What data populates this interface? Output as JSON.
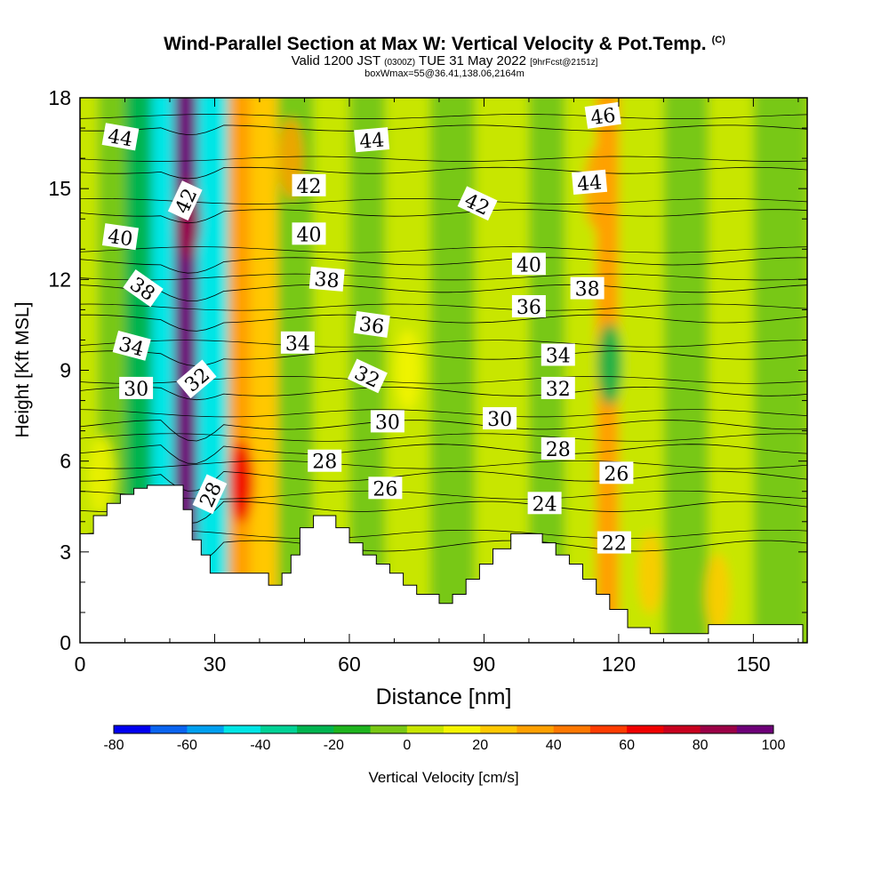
{
  "title": {
    "main": "Wind-Parallel Section at Max W: Vertical Velocity & Pot.Temp.",
    "copyright": "(C)",
    "valid_prefix": "Valid 1200 JST",
    "valid_z": "(0300Z)",
    "valid_date": "TUE 31 May 2022",
    "forecast": "[9hrFcst@2151z]",
    "box": "boxWmax=55@36.41,138.06,2164m"
  },
  "chart_data": {
    "type": "heatmap",
    "xlabel": "Distance [nm]",
    "ylabel": "Height [Kft MSL]",
    "xlim": [
      0,
      162
    ],
    "ylim": [
      0,
      18
    ],
    "x_ticks": [
      "0",
      "30",
      "60",
      "90",
      "120",
      "150"
    ],
    "y_ticks": [
      "0",
      "3",
      "6",
      "9",
      "12",
      "15",
      "18"
    ],
    "x_tick_values": [
      0,
      30,
      60,
      90,
      120,
      150
    ],
    "y_tick_values": [
      0,
      3,
      6,
      9,
      12,
      15,
      18
    ],
    "colorbar": {
      "label": "Vertical Velocity [cm/s]",
      "tick_labels": [
        "-80",
        "-60",
        "-40",
        "-20",
        "0",
        "20",
        "40",
        "60",
        "80",
        "100"
      ],
      "tick_values": [
        -80,
        -60,
        -40,
        -20,
        0,
        20,
        40,
        60,
        80,
        100
      ],
      "min": -80,
      "max": 100,
      "colors": [
        "#0000f0",
        "#0a64f0",
        "#00a0f0",
        "#00e6e6",
        "#00d296",
        "#00b450",
        "#1eb41e",
        "#78c814",
        "#c8e600",
        "#f5f500",
        "#ffc800",
        "#ffa000",
        "#ff7800",
        "#ff3c00",
        "#f00000",
        "#c8001e",
        "#9b0046",
        "#6e0078"
      ]
    },
    "terrain": [
      [
        0,
        3.6
      ],
      [
        3,
        3.6
      ],
      [
        3,
        4.2
      ],
      [
        6,
        4.2
      ],
      [
        6,
        4.6
      ],
      [
        9,
        4.6
      ],
      [
        9,
        4.9
      ],
      [
        12,
        4.9
      ],
      [
        12,
        5.1
      ],
      [
        15,
        5.1
      ],
      [
        15,
        5.2
      ],
      [
        23,
        5.2
      ],
      [
        23,
        4.4
      ],
      [
        25,
        4.4
      ],
      [
        25,
        3.4
      ],
      [
        27,
        3.4
      ],
      [
        27,
        2.9
      ],
      [
        29,
        2.9
      ],
      [
        29,
        2.3
      ],
      [
        42,
        2.3
      ],
      [
        42,
        1.9
      ],
      [
        45,
        1.9
      ],
      [
        45,
        2.3
      ],
      [
        47,
        2.3
      ],
      [
        47,
        2.9
      ],
      [
        49,
        2.9
      ],
      [
        49,
        3.8
      ],
      [
        52,
        3.8
      ],
      [
        52,
        4.2
      ],
      [
        57,
        4.2
      ],
      [
        57,
        3.8
      ],
      [
        60,
        3.8
      ],
      [
        60,
        3.3
      ],
      [
        63,
        3.3
      ],
      [
        63,
        2.9
      ],
      [
        66,
        2.9
      ],
      [
        66,
        2.6
      ],
      [
        69,
        2.6
      ],
      [
        69,
        2.3
      ],
      [
        72,
        2.3
      ],
      [
        72,
        1.9
      ],
      [
        75,
        1.9
      ],
      [
        75,
        1.6
      ],
      [
        80,
        1.6
      ],
      [
        80,
        1.3
      ],
      [
        83,
        1.3
      ],
      [
        83,
        1.6
      ],
      [
        86,
        1.6
      ],
      [
        86,
        2.1
      ],
      [
        89,
        2.1
      ],
      [
        89,
        2.6
      ],
      [
        92,
        2.6
      ],
      [
        92,
        3.1
      ],
      [
        96,
        3.1
      ],
      [
        96,
        3.6
      ],
      [
        103,
        3.6
      ],
      [
        103,
        3.3
      ],
      [
        106,
        3.3
      ],
      [
        106,
        2.9
      ],
      [
        109,
        2.9
      ],
      [
        109,
        2.6
      ],
      [
        112,
        2.6
      ],
      [
        112,
        2.1
      ],
      [
        115,
        2.1
      ],
      [
        115,
        1.6
      ],
      [
        118,
        1.6
      ],
      [
        118,
        1.1
      ],
      [
        122,
        1.1
      ],
      [
        122,
        0.5
      ],
      [
        127,
        0.5
      ],
      [
        127,
        0.3
      ],
      [
        140,
        0.3
      ],
      [
        140,
        0.6
      ],
      [
        161,
        0.6
      ],
      [
        161,
        0
      ]
    ],
    "wv_bands": [
      {
        "x": [
          0,
          4
        ],
        "w": 5
      },
      {
        "x": [
          4,
          10
        ],
        "w": -5
      },
      {
        "x": [
          10,
          16
        ],
        "w": -30
      },
      {
        "x": [
          16,
          21
        ],
        "w": -45
      },
      {
        "x": [
          21,
          26
        ],
        "w": 100
      },
      {
        "x": [
          26,
          33
        ],
        "w": -45
      },
      {
        "x": [
          33,
          38
        ],
        "w": 35
      },
      {
        "x": [
          38,
          44
        ],
        "w": 20
      },
      {
        "x": [
          44,
          52
        ],
        "w": -10
      },
      {
        "x": [
          52,
          60
        ],
        "w": 5
      },
      {
        "x": [
          60,
          68
        ],
        "w": -10
      },
      {
        "x": [
          68,
          78
        ],
        "w": 5
      },
      {
        "x": [
          78,
          88
        ],
        "w": -5
      },
      {
        "x": [
          88,
          100
        ],
        "w": 5
      },
      {
        "x": [
          100,
          108
        ],
        "w": -5
      },
      {
        "x": [
          108,
          115
        ],
        "w": 5
      },
      {
        "x": [
          115,
          120
        ],
        "w": 30
      },
      {
        "x": [
          120,
          130
        ],
        "w": 5
      },
      {
        "x": [
          130,
          140
        ],
        "w": -5
      },
      {
        "x": [
          140,
          150
        ],
        "w": 5
      },
      {
        "x": [
          150,
          162
        ],
        "w": -5
      }
    ],
    "wv_cells": [
      {
        "x": 36,
        "y": 5.3,
        "w": 60
      },
      {
        "x": 24,
        "y": 14,
        "w": 80
      },
      {
        "x": 73,
        "y": 9,
        "w": 15
      },
      {
        "x": 115,
        "y": 15,
        "w": 30
      },
      {
        "x": 47,
        "y": 16,
        "w": 35
      },
      {
        "x": 127,
        "y": 2.3,
        "w": 20
      },
      {
        "x": 142,
        "y": 1.6,
        "w": 20
      },
      {
        "x": 118,
        "y": 9.2,
        "w": -25
      },
      {
        "x": 5,
        "y": 5.5,
        "w": 15
      }
    ],
    "isentropes": [
      {
        "theta": 22,
        "y": 3.2
      },
      {
        "theta": 24,
        "y": 4.5
      },
      {
        "theta": 26,
        "y": 5.5
      },
      {
        "theta": 28,
        "y": 6.4
      },
      {
        "theta": 30,
        "y": 7.2
      },
      {
        "theta": 32,
        "y": 8.3
      },
      {
        "theta": 34,
        "y": 9.5
      },
      {
        "theta": 36,
        "y": 10.7
      },
      {
        "theta": 38,
        "y": 11.7
      },
      {
        "theta": 40,
        "y": 12.6
      },
      {
        "theta": 42,
        "y": 14.2
      },
      {
        "theta": 44,
        "y": 15.6
      },
      {
        "theta": 46,
        "y": 17.0
      }
    ],
    "contour_labels": [
      {
        "text": "44",
        "x": 9,
        "y": 16.7,
        "rot": 10
      },
      {
        "text": "42",
        "x": 23.5,
        "y": 14.6,
        "rot": -65
      },
      {
        "text": "40",
        "x": 9,
        "y": 13.4,
        "rot": 8
      },
      {
        "text": "38",
        "x": 14,
        "y": 11.7,
        "rot": 35
      },
      {
        "text": "34",
        "x": 11.5,
        "y": 9.8,
        "rot": 15
      },
      {
        "text": "32",
        "x": 26,
        "y": 8.7,
        "rot": -40
      },
      {
        "text": "30",
        "x": 12.5,
        "y": 8.4,
        "rot": 0
      },
      {
        "text": "28",
        "x": 29,
        "y": 4.9,
        "rot": -65
      },
      {
        "text": "42",
        "x": 51,
        "y": 15.1,
        "rot": 0
      },
      {
        "text": "40",
        "x": 51,
        "y": 13.5,
        "rot": 0
      },
      {
        "text": "38",
        "x": 55,
        "y": 12.0,
        "rot": 5
      },
      {
        "text": "34",
        "x": 48.5,
        "y": 9.9,
        "rot": 0
      },
      {
        "text": "36",
        "x": 65,
        "y": 10.5,
        "rot": 8
      },
      {
        "text": "32",
        "x": 64,
        "y": 8.8,
        "rot": 25
      },
      {
        "text": "30",
        "x": 68.5,
        "y": 7.3,
        "rot": 0
      },
      {
        "text": "28",
        "x": 54.5,
        "y": 6.0,
        "rot": 0
      },
      {
        "text": "26",
        "x": 68,
        "y": 5.1,
        "rot": 0
      },
      {
        "text": "44",
        "x": 65,
        "y": 16.6,
        "rot": -5
      },
      {
        "text": "42",
        "x": 88.5,
        "y": 14.5,
        "rot": 25
      },
      {
        "text": "40",
        "x": 100,
        "y": 12.5,
        "rot": 0
      },
      {
        "text": "36",
        "x": 100,
        "y": 11.1,
        "rot": 0
      },
      {
        "text": "38",
        "x": 113,
        "y": 11.7,
        "rot": 0
      },
      {
        "text": "34",
        "x": 106.5,
        "y": 9.5,
        "rot": 0
      },
      {
        "text": "32",
        "x": 106.5,
        "y": 8.4,
        "rot": 0
      },
      {
        "text": "30",
        "x": 93.5,
        "y": 7.4,
        "rot": 0
      },
      {
        "text": "28",
        "x": 106.5,
        "y": 6.4,
        "rot": 0
      },
      {
        "text": "26",
        "x": 119.5,
        "y": 5.6,
        "rot": 0
      },
      {
        "text": "24",
        "x": 103.5,
        "y": 4.6,
        "rot": 0
      },
      {
        "text": "22",
        "x": 119,
        "y": 3.3,
        "rot": 0
      },
      {
        "text": "46",
        "x": 116.5,
        "y": 17.4,
        "rot": -8
      },
      {
        "text": "44",
        "x": 113.5,
        "y": 15.2,
        "rot": -5
      }
    ]
  }
}
